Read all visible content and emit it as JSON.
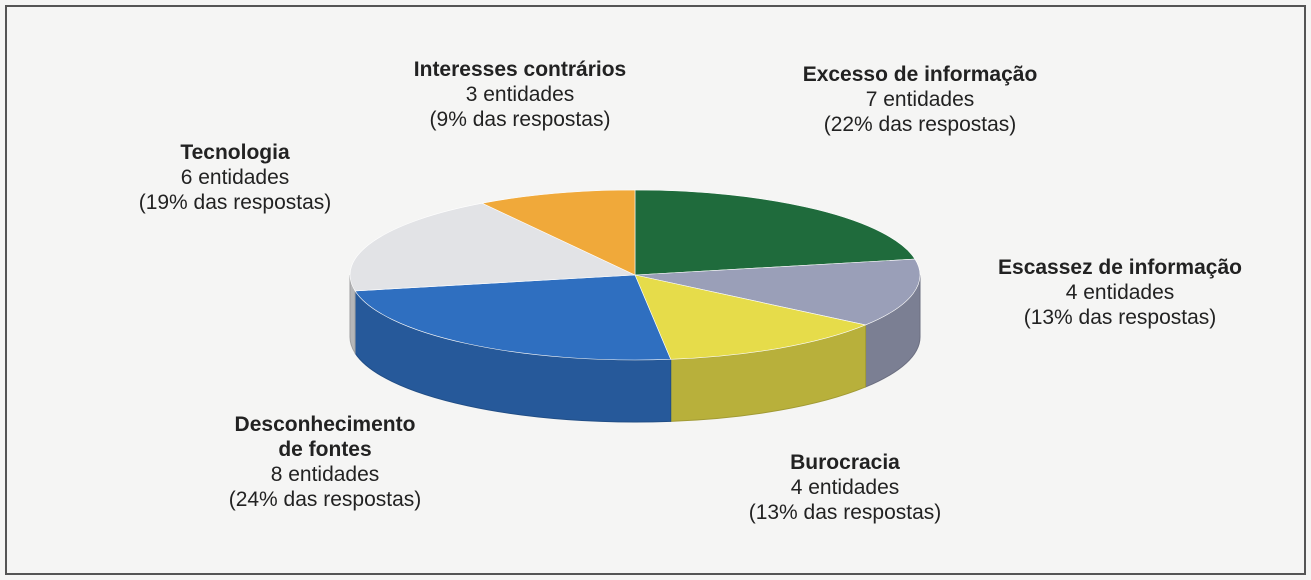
{
  "chart_data": {
    "type": "pie",
    "categories": [
      "Excesso de informação",
      "Escassez de informação",
      "Burocracia",
      "Desconhecimento de fontes",
      "Tecnologia",
      "Interesses contrários"
    ],
    "values": [
      22,
      13,
      13,
      24,
      19,
      9
    ],
    "value_labels": [
      "(22% das respostas)",
      "(13% das respostas)",
      "(13% das respostas)",
      "(24% das respostas)",
      "(19% das respostas)",
      "(9% das respostas)"
    ],
    "entity_labels": [
      "7 entidades",
      "4 entidades",
      "4 entidades",
      "8 entidades",
      "6 entidades",
      "3 entidades"
    ],
    "colors": [
      "#1f6b3c",
      "#9a9fb8",
      "#e6dc4a",
      "#2f6fc0",
      "#e2e3e6",
      "#f0a93a"
    ]
  }
}
